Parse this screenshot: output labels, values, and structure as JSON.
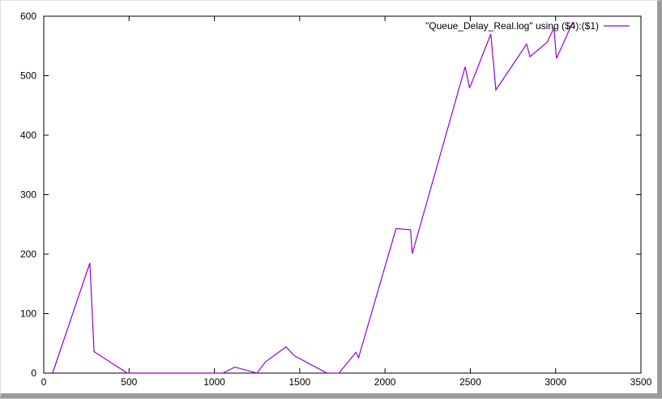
{
  "chart_data": {
    "type": "line",
    "title": "",
    "xlabel": "",
    "ylabel": "",
    "xlim": [
      0,
      3500
    ],
    "ylim": [
      0,
      600
    ],
    "xticks": [
      0,
      500,
      1000,
      1500,
      2000,
      2500,
      3000,
      3500
    ],
    "yticks": [
      0,
      100,
      200,
      300,
      400,
      500,
      600
    ],
    "grid": false,
    "legend_position": "top-right",
    "series": [
      {
        "name": "\"Queue_Delay_Real.log\" using ($4):($1)",
        "color": "#9400d3",
        "x": [
          52,
          270,
          295,
          490,
          1050,
          1120,
          1250,
          1300,
          1420,
          1470,
          1660,
          1730,
          1830,
          1845,
          2065,
          2150,
          2160,
          2470,
          2495,
          2500,
          2620,
          2650,
          2830,
          2850,
          2950,
          2990,
          3005,
          3100
        ],
        "y": [
          0,
          185,
          36,
          0,
          0,
          10,
          0,
          19,
          44,
          29,
          0,
          0,
          35,
          26,
          243,
          241,
          201,
          515,
          480,
          482,
          570,
          476,
          553,
          532,
          556,
          580,
          529,
          590
        ]
      }
    ]
  }
}
